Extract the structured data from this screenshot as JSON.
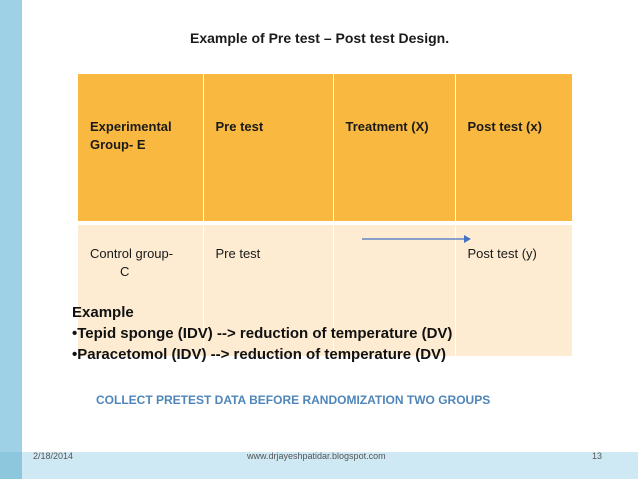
{
  "slide": {
    "title": "Example of Pre test – Post test Design.",
    "table": {
      "rows": [
        {
          "group_line1": "Experimental",
          "group_line2": "Group- E",
          "pretest": "Pre test",
          "treatment": "Treatment (X)",
          "posttest": "Post test (x)"
        },
        {
          "group_line1": "Control group-",
          "group_line2": "C",
          "pretest": "Pre test",
          "treatment": "",
          "posttest": "Post test (y)"
        }
      ]
    },
    "example": {
      "heading": "Example",
      "items": [
        "•Tepid sponge (IDV) -->  reduction of temperature (DV)",
        "•Paracetomol (IDV)  -->  reduction of temperature (DV)"
      ]
    },
    "note": "COLLECT PRETEST DATA BEFORE RANDOMIZATION TWO GROUPS",
    "footer": {
      "date": "2/18/2014",
      "url": "www.drjayeshpatidar.blogspot.com",
      "page": "13"
    }
  },
  "colors": {
    "accent_bar": "#9fd1e6",
    "header_row": "#f9b940",
    "body_row": "#fdebd2",
    "note_text": "#4f86b9",
    "arrow": "#4472c4"
  }
}
